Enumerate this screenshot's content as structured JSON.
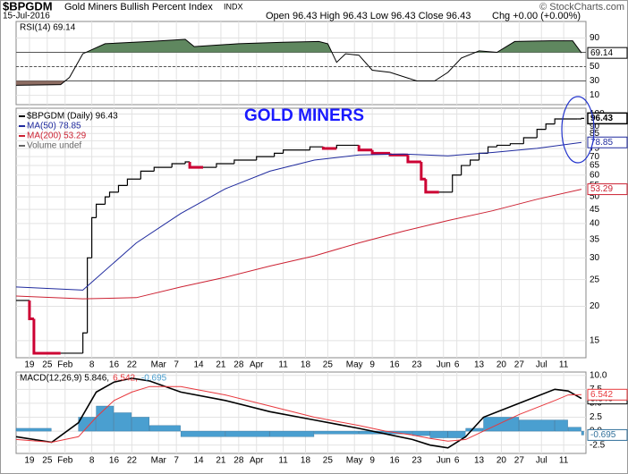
{
  "header": {
    "symbol": "$BPGDM",
    "name": "Gold Miners Bullish Percent Index",
    "exchange": "INDX",
    "date": "15-Jul-2016",
    "quote": "Open 96.43 High 96.43 Low 96.43 Close 96.43",
    "change": "Chg +0.00 (+0.00%)",
    "credit": "© StockCharts.com"
  },
  "chart_data": [
    {
      "type": "line",
      "ylim": [
        -3,
        113
      ],
      "yticks": [
        90,
        70,
        50,
        30,
        10
      ],
      "overbought": 70,
      "oversold": 30,
      "midline": 50,
      "above_color": "#5f875f",
      "below_color": "#8c6c62",
      "series": [
        {
          "name": "RSI(14) 69.14",
          "color": "#000000",
          "x": [
            0,
            10,
            12,
            15,
            20,
            30,
            38,
            40,
            50,
            60,
            68,
            70,
            72,
            74,
            77,
            80,
            84,
            90,
            94,
            97,
            100,
            104,
            108,
            112,
            120,
            125,
            127
          ],
          "values": [
            24,
            25,
            35,
            68,
            82,
            85,
            88,
            78,
            82,
            84,
            85,
            82,
            56,
            68,
            66,
            45,
            42,
            30,
            30,
            42,
            62,
            72,
            70,
            85,
            86,
            86,
            69.14
          ]
        }
      ]
    },
    {
      "type": "line",
      "log": true,
      "annotation": "GOLD MINERS",
      "annotation_color": "#1a1aff",
      "xlim": [
        0,
        128
      ],
      "xticks": [
        {
          "value": 3,
          "label": "19"
        },
        {
          "value": 7,
          "label": "25"
        },
        {
          "value": 11,
          "label": "Feb"
        },
        {
          "value": 17,
          "label": "8"
        },
        {
          "value": 22,
          "label": "16"
        },
        {
          "value": 26,
          "label": "22"
        },
        {
          "value": 32,
          "label": "Mar"
        },
        {
          "value": 36,
          "label": "7"
        },
        {
          "value": 41,
          "label": "14"
        },
        {
          "value": 46,
          "label": "21"
        },
        {
          "value": 50,
          "label": "28"
        },
        {
          "value": 54,
          "label": "Apr"
        },
        {
          "value": 60,
          "label": "11"
        },
        {
          "value": 65,
          "label": "18"
        },
        {
          "value": 70,
          "label": "25"
        },
        {
          "value": 76,
          "label": "May"
        },
        {
          "value": 80,
          "label": "9"
        },
        {
          "value": 85,
          "label": "16"
        },
        {
          "value": 90,
          "label": "23"
        },
        {
          "value": 96,
          "label": "Jun"
        },
        {
          "value": 99,
          "label": "6"
        },
        {
          "value": 104,
          "label": "13"
        },
        {
          "value": 109,
          "label": "20"
        },
        {
          "value": 113,
          "label": "27"
        },
        {
          "value": 118,
          "label": "Jul"
        },
        {
          "value": 123,
          "label": "11"
        }
      ],
      "ylim": [
        13,
        105
      ],
      "yticks": [
        15,
        20,
        25,
        30,
        35,
        40,
        45,
        50,
        55,
        60,
        65,
        70,
        75,
        80,
        85,
        90,
        100
      ],
      "series": [
        {
          "name": "$BPGDM (Daily) 96.43",
          "type": "step",
          "color": "#000000",
          "down_color": "#cc0033",
          "x": [
            0,
            3,
            4,
            10,
            15,
            16,
            17,
            18,
            20,
            21,
            23,
            25,
            28,
            31,
            35,
            38,
            39,
            42,
            45,
            49,
            54,
            58,
            60,
            66,
            69,
            72,
            77,
            80,
            84,
            88,
            91,
            92,
            95,
            98,
            100,
            102,
            104,
            106,
            108,
            111,
            114,
            117,
            119,
            121,
            126,
            127
          ],
          "values": [
            21,
            18,
            13.5,
            13.5,
            16,
            30,
            42,
            47,
            50,
            52,
            55,
            58,
            62,
            64,
            66,
            67,
            64,
            64,
            66,
            68,
            70,
            72,
            74,
            76,
            75,
            77,
            74,
            72,
            71,
            67,
            58,
            52,
            52,
            60,
            65,
            68,
            72,
            76,
            77,
            78,
            82,
            88,
            92,
            96,
            96,
            96.43
          ]
        },
        {
          "name": "MA(50) 78.85",
          "color": "#1f2a9e",
          "x": [
            0,
            15,
            27,
            37,
            47,
            57,
            67,
            77,
            87,
            97,
            107,
            117,
            127
          ],
          "values": [
            23.5,
            22.9,
            34,
            43.5,
            53.5,
            62,
            68,
            71,
            71.5,
            70.5,
            72.5,
            75,
            78.85
          ]
        },
        {
          "name": "MA(200) 53.29",
          "color": "#cc2233",
          "x": [
            0,
            15,
            27,
            37,
            47,
            57,
            67,
            77,
            87,
            97,
            107,
            117,
            127
          ],
          "values": [
            21.8,
            21.3,
            21.5,
            23.5,
            25.5,
            28,
            30.5,
            34,
            37.5,
            41,
            44.5,
            49,
            53.29
          ]
        },
        {
          "name": "Volume undef",
          "type": "none",
          "color": "#666666"
        }
      ]
    },
    {
      "type": "line",
      "ylim": [
        -4,
        10.6
      ],
      "yticks": [
        {
          "value": 10,
          "label": "10.0"
        },
        {
          "value": 7.5,
          "label": "7.5"
        },
        {
          "value": 5,
          "label": "5.0"
        },
        {
          "value": 2.5,
          "label": "2.5"
        },
        {
          "value": 0,
          "label": "0.0"
        },
        {
          "value": -2.5,
          "label": "-2.5"
        }
      ],
      "series": [
        {
          "name": "MACD(12,26,9) 5.846,",
          "color": "#000000",
          "x": [
            0,
            8,
            14,
            18,
            22,
            26,
            30,
            37,
            47,
            57,
            67,
            77,
            83,
            89,
            93,
            97,
            101,
            105,
            113,
            121,
            124,
            127
          ],
          "values": [
            -1,
            -2,
            1.5,
            7,
            8.8,
            9.5,
            9,
            7,
            5.5,
            3.5,
            2,
            0.5,
            -0.5,
            -1.5,
            -2.5,
            -3,
            -1,
            2.5,
            5,
            7.5,
            7.2,
            5.846
          ]
        },
        {
          "name": "6.542,",
          "color": "#e8383d",
          "x": [
            0,
            8,
            14,
            18,
            22,
            26,
            30,
            37,
            47,
            57,
            67,
            77,
            83,
            89,
            93,
            97,
            101,
            105,
            113,
            121,
            124,
            127
          ],
          "values": [
            -1.5,
            -2,
            -1,
            2.5,
            5.5,
            7,
            8,
            8,
            6.5,
            4.5,
            2.5,
            1,
            0,
            -0.7,
            -1.3,
            -1.8,
            -1.5,
            0,
            3,
            5.5,
            6.5,
            6.542
          ]
        },
        {
          "name": "-0.695",
          "type": "bar",
          "color": "#4a9fd0",
          "x": [
            0,
            8,
            14,
            18,
            22,
            26,
            30,
            37,
            47,
            57,
            67,
            77,
            83,
            89,
            93,
            97,
            101,
            105,
            113,
            121,
            124,
            127
          ],
          "values": [
            0.5,
            0,
            2.5,
            4.5,
            3.3,
            2.5,
            1,
            -1,
            -1,
            -1,
            -0.5,
            -0.5,
            -0.5,
            -0.8,
            -1.2,
            -1.2,
            0.5,
            2.5,
            2,
            2,
            0.7,
            -0.695
          ]
        }
      ]
    }
  ]
}
